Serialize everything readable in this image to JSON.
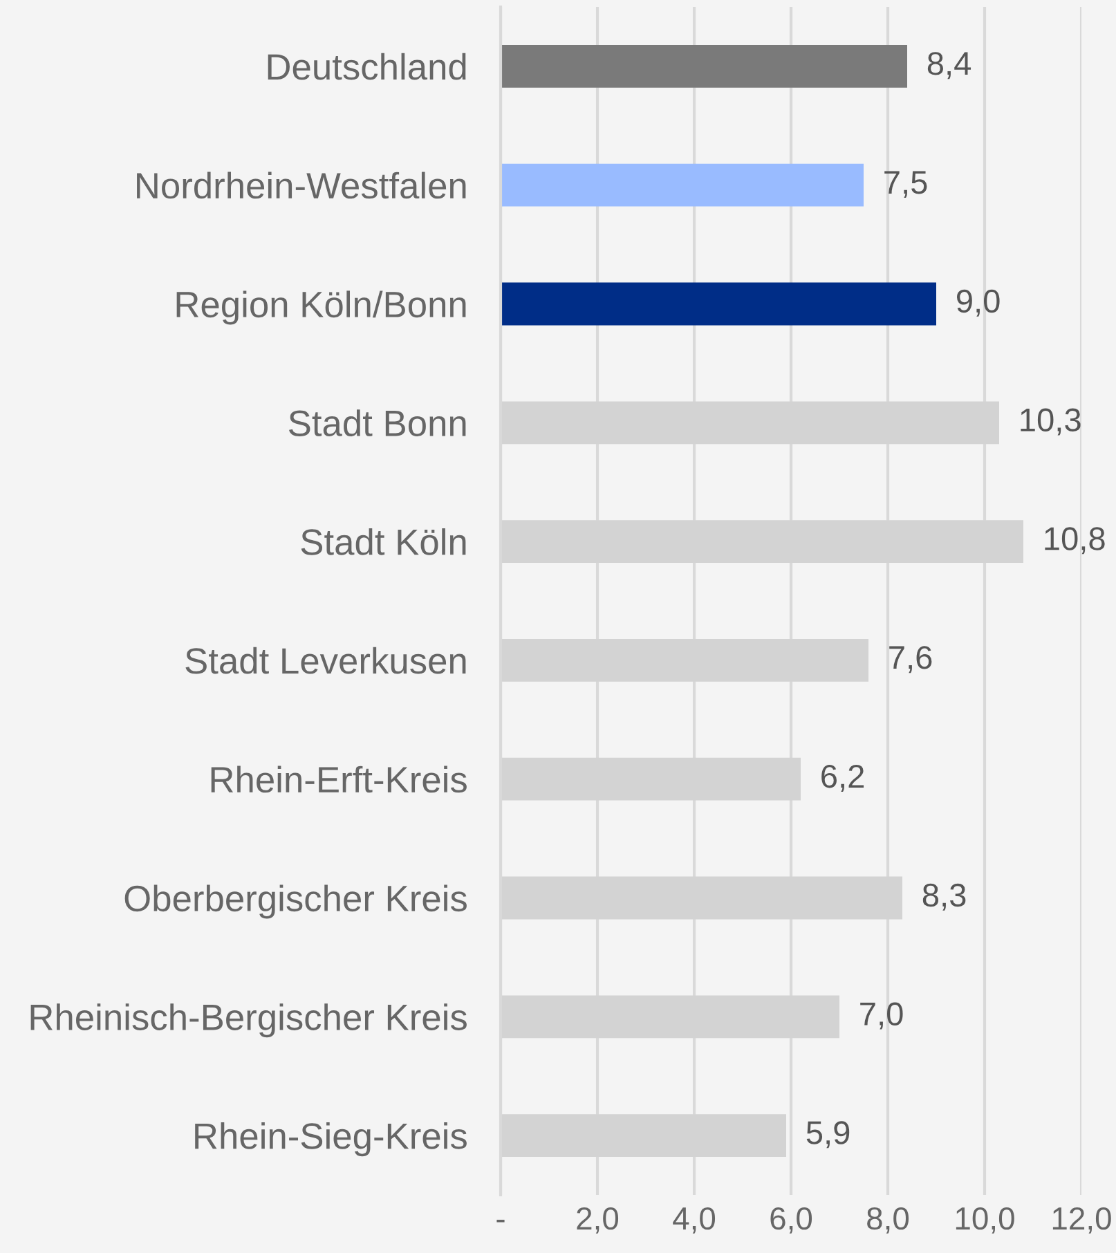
{
  "chart_data": {
    "type": "bar",
    "orientation": "horizontal",
    "categories": [
      "Deutschland",
      "Nordrhein-Westfalen",
      "Region Köln/Bonn",
      "Stadt Bonn",
      "Stadt Köln",
      "Stadt Leverkusen",
      "Rhein-Erft-Kreis",
      "Oberbergischer Kreis",
      "Rheinisch-Bergischer Kreis",
      "Rhein-Sieg-Kreis"
    ],
    "values": [
      8.4,
      7.5,
      9.0,
      10.3,
      10.8,
      7.6,
      6.2,
      8.3,
      7.0,
      5.9
    ],
    "value_labels": [
      "8,4",
      "7,5",
      "9,0",
      "10,3",
      "10,8",
      "7,6",
      "6,2",
      "8,3",
      "7,0",
      "5,9"
    ],
    "colors": [
      "#7a7a7a",
      "#99bbff",
      "#002d87",
      "#d3d3d3",
      "#d3d3d3",
      "#d3d3d3",
      "#d3d3d3",
      "#d3d3d3",
      "#d3d3d3",
      "#d3d3d3"
    ],
    "xlim": [
      0,
      12
    ],
    "xticks": [
      {
        "value": 0,
        "label": "-"
      },
      {
        "value": 2,
        "label": "2,0"
      },
      {
        "value": 4,
        "label": "4,0"
      },
      {
        "value": 6,
        "label": "6,0"
      },
      {
        "value": 8,
        "label": "8,0"
      },
      {
        "value": 10,
        "label": "10,0"
      },
      {
        "value": 12,
        "label": "12,0"
      }
    ],
    "grid": "x",
    "legend": false
  }
}
